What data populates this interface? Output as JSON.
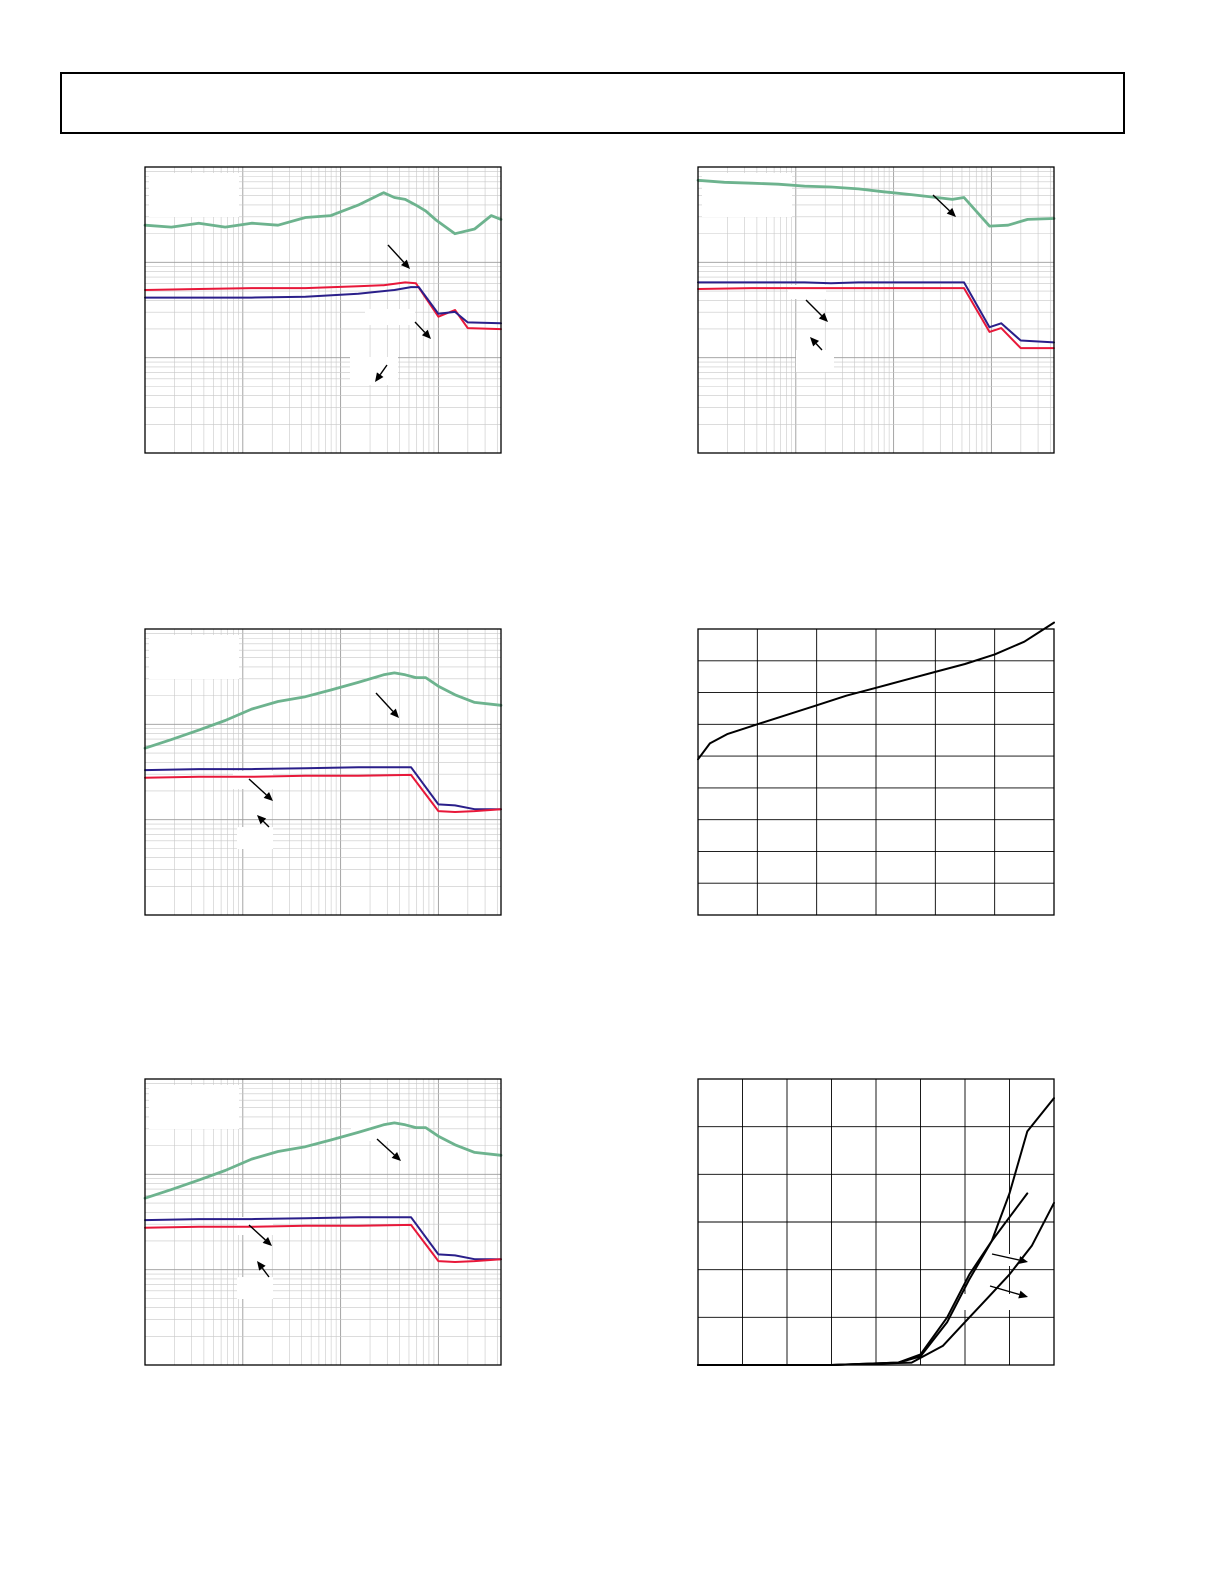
{
  "page": {
    "header_title": ""
  },
  "chart_data": [
    {
      "id": "chart-1",
      "type": "line",
      "xscale": "log",
      "yscale": "log",
      "x_decades": 3.64,
      "y_decades": 3,
      "grid": true,
      "series": [
        {
          "color": "#6db38e",
          "points": [
            [
              0,
              2.39
            ],
            [
              0.27,
              2.37
            ],
            [
              0.55,
              2.41
            ],
            [
              0.82,
              2.37
            ],
            [
              1.09,
              2.41
            ],
            [
              1.36,
              2.39
            ],
            [
              1.64,
              2.47
            ],
            [
              1.9,
              2.49
            ],
            [
              2.18,
              2.6
            ],
            [
              2.44,
              2.73
            ],
            [
              2.55,
              2.68
            ],
            [
              2.66,
              2.66
            ],
            [
              2.77,
              2.6
            ],
            [
              2.87,
              2.54
            ],
            [
              2.98,
              2.44
            ],
            [
              3.17,
              2.3
            ],
            [
              3.37,
              2.35
            ],
            [
              3.54,
              2.49
            ],
            [
              3.64,
              2.45
            ]
          ]
        },
        {
          "color": "#e8183a",
          "points": [
            [
              0,
              1.71
            ],
            [
              0.55,
              1.72
            ],
            [
              1.09,
              1.73
            ],
            [
              1.64,
              1.73
            ],
            [
              2.18,
              1.75
            ],
            [
              2.44,
              1.76
            ],
            [
              2.66,
              1.79
            ],
            [
              2.77,
              1.78
            ],
            [
              3.0,
              1.43
            ],
            [
              3.17,
              1.5
            ],
            [
              3.3,
              1.31
            ],
            [
              3.64,
              1.3
            ]
          ]
        },
        {
          "color": "#2a1f8a",
          "points": [
            [
              0,
              1.63
            ],
            [
              0.55,
              1.63
            ],
            [
              1.09,
              1.63
            ],
            [
              1.64,
              1.64
            ],
            [
              2.18,
              1.67
            ],
            [
              2.55,
              1.71
            ],
            [
              2.72,
              1.74
            ],
            [
              2.8,
              1.74
            ],
            [
              3.0,
              1.46
            ],
            [
              3.17,
              1.48
            ],
            [
              3.3,
              1.37
            ],
            [
              3.64,
              1.36
            ]
          ]
        }
      ]
    },
    {
      "id": "chart-2",
      "type": "line",
      "xscale": "log",
      "yscale": "log",
      "x_decades": 3.64,
      "y_decades": 3,
      "grid": true,
      "series": [
        {
          "color": "#6db38e",
          "points": [
            [
              0,
              2.86
            ],
            [
              0.27,
              2.84
            ],
            [
              0.55,
              2.83
            ],
            [
              0.82,
              2.82
            ],
            [
              1.09,
              2.8
            ],
            [
              1.36,
              2.79
            ],
            [
              1.64,
              2.77
            ],
            [
              1.9,
              2.74
            ],
            [
              2.18,
              2.71
            ],
            [
              2.44,
              2.68
            ],
            [
              2.6,
              2.66
            ],
            [
              2.72,
              2.68
            ],
            [
              2.98,
              2.38
            ],
            [
              3.17,
              2.39
            ],
            [
              3.37,
              2.45
            ],
            [
              3.64,
              2.46
            ]
          ]
        },
        {
          "color": "#2a1f8a",
          "points": [
            [
              0,
              1.79
            ],
            [
              0.55,
              1.79
            ],
            [
              1.09,
              1.79
            ],
            [
              1.36,
              1.78
            ],
            [
              1.64,
              1.79
            ],
            [
              2.18,
              1.79
            ],
            [
              2.72,
              1.79
            ],
            [
              2.98,
              1.32
            ],
            [
              3.1,
              1.36
            ],
            [
              3.3,
              1.18
            ],
            [
              3.64,
              1.16
            ]
          ]
        },
        {
          "color": "#e8183a",
          "points": [
            [
              0,
              1.72
            ],
            [
              0.55,
              1.73
            ],
            [
              1.09,
              1.73
            ],
            [
              1.64,
              1.73
            ],
            [
              2.18,
              1.73
            ],
            [
              2.72,
              1.73
            ],
            [
              2.98,
              1.27
            ],
            [
              3.1,
              1.31
            ],
            [
              3.3,
              1.1
            ],
            [
              3.64,
              1.1
            ]
          ]
        }
      ]
    },
    {
      "id": "chart-3",
      "type": "line",
      "xscale": "log",
      "yscale": "log",
      "x_decades": 3.64,
      "y_decades": 3,
      "grid": true,
      "series": [
        {
          "color": "#6db38e",
          "points": [
            [
              0,
              1.75
            ],
            [
              0.27,
              1.84
            ],
            [
              0.55,
              1.94
            ],
            [
              0.82,
              2.04
            ],
            [
              1.09,
              2.16
            ],
            [
              1.36,
              2.24
            ],
            [
              1.64,
              2.29
            ],
            [
              1.9,
              2.36
            ],
            [
              2.18,
              2.44
            ],
            [
              2.44,
              2.52
            ],
            [
              2.55,
              2.54
            ],
            [
              2.66,
              2.52
            ],
            [
              2.77,
              2.49
            ],
            [
              2.87,
              2.49
            ],
            [
              3.0,
              2.4
            ],
            [
              3.17,
              2.31
            ],
            [
              3.37,
              2.23
            ],
            [
              3.64,
              2.2
            ]
          ]
        },
        {
          "color": "#2a1f8a",
          "points": [
            [
              0,
              1.52
            ],
            [
              0.55,
              1.53
            ],
            [
              1.09,
              1.53
            ],
            [
              1.64,
              1.54
            ],
            [
              2.18,
              1.55
            ],
            [
              2.72,
              1.55
            ],
            [
              3.0,
              1.16
            ],
            [
              3.17,
              1.15
            ],
            [
              3.37,
              1.11
            ],
            [
              3.64,
              1.11
            ]
          ]
        },
        {
          "color": "#e8183a",
          "points": [
            [
              0,
              1.44
            ],
            [
              0.55,
              1.45
            ],
            [
              1.09,
              1.45
            ],
            [
              1.64,
              1.46
            ],
            [
              2.18,
              1.46
            ],
            [
              2.72,
              1.47
            ],
            [
              3.0,
              1.09
            ],
            [
              3.17,
              1.08
            ],
            [
              3.37,
              1.09
            ],
            [
              3.64,
              1.11
            ]
          ]
        }
      ]
    },
    {
      "id": "chart-4",
      "type": "line",
      "xscale": "linear",
      "yscale": "linear",
      "xlim": [
        0,
        6
      ],
      "ylim": [
        0,
        9
      ],
      "grid": true,
      "series": [
        {
          "color": "#000000",
          "points": [
            [
              0,
              4.9
            ],
            [
              0.2,
              5.4
            ],
            [
              0.5,
              5.7
            ],
            [
              1.0,
              6.0
            ],
            [
              1.5,
              6.3
            ],
            [
              2.0,
              6.6
            ],
            [
              2.5,
              6.9
            ],
            [
              3.0,
              7.15
            ],
            [
              3.5,
              7.4
            ],
            [
              4.0,
              7.65
            ],
            [
              4.5,
              7.9
            ],
            [
              5.0,
              8.2
            ],
            [
              5.5,
              8.6
            ],
            [
              6.0,
              9.2
            ]
          ]
        }
      ]
    },
    {
      "id": "chart-5",
      "type": "line",
      "xscale": "linear",
      "yscale": "linear",
      "xlim": [
        0,
        8
      ],
      "ylim": [
        0,
        6
      ],
      "grid": true,
      "series": [
        {
          "color": "#000000",
          "points": [
            [
              0,
              0
            ],
            [
              3.0,
              0
            ],
            [
              4.5,
              0.05
            ],
            [
              5.0,
              0.18
            ],
            [
              5.6,
              0.9
            ],
            [
              6.1,
              1.8
            ],
            [
              6.6,
              2.6
            ],
            [
              7.0,
              3.6
            ],
            [
              7.4,
              4.9
            ],
            [
              8.0,
              5.6
            ]
          ]
        },
        {
          "color": "#000000",
          "points": [
            [
              0,
              0
            ],
            [
              3.0,
              0
            ],
            [
              4.5,
              0.05
            ],
            [
              5.0,
              0.22
            ],
            [
              5.6,
              1.0
            ],
            [
              6.1,
              1.9
            ],
            [
              6.6,
              2.6
            ],
            [
              7.0,
              3.1
            ],
            [
              7.4,
              3.6
            ]
          ]
        },
        {
          "color": "#000000",
          "points": [
            [
              0,
              0
            ],
            [
              3.0,
              0
            ],
            [
              4.8,
              0.05
            ],
            [
              5.5,
              0.4
            ],
            [
              6.0,
              0.9
            ],
            [
              6.5,
              1.4
            ],
            [
              7.0,
              1.9
            ],
            [
              7.5,
              2.5
            ],
            [
              8.0,
              3.4
            ]
          ]
        }
      ]
    }
  ]
}
